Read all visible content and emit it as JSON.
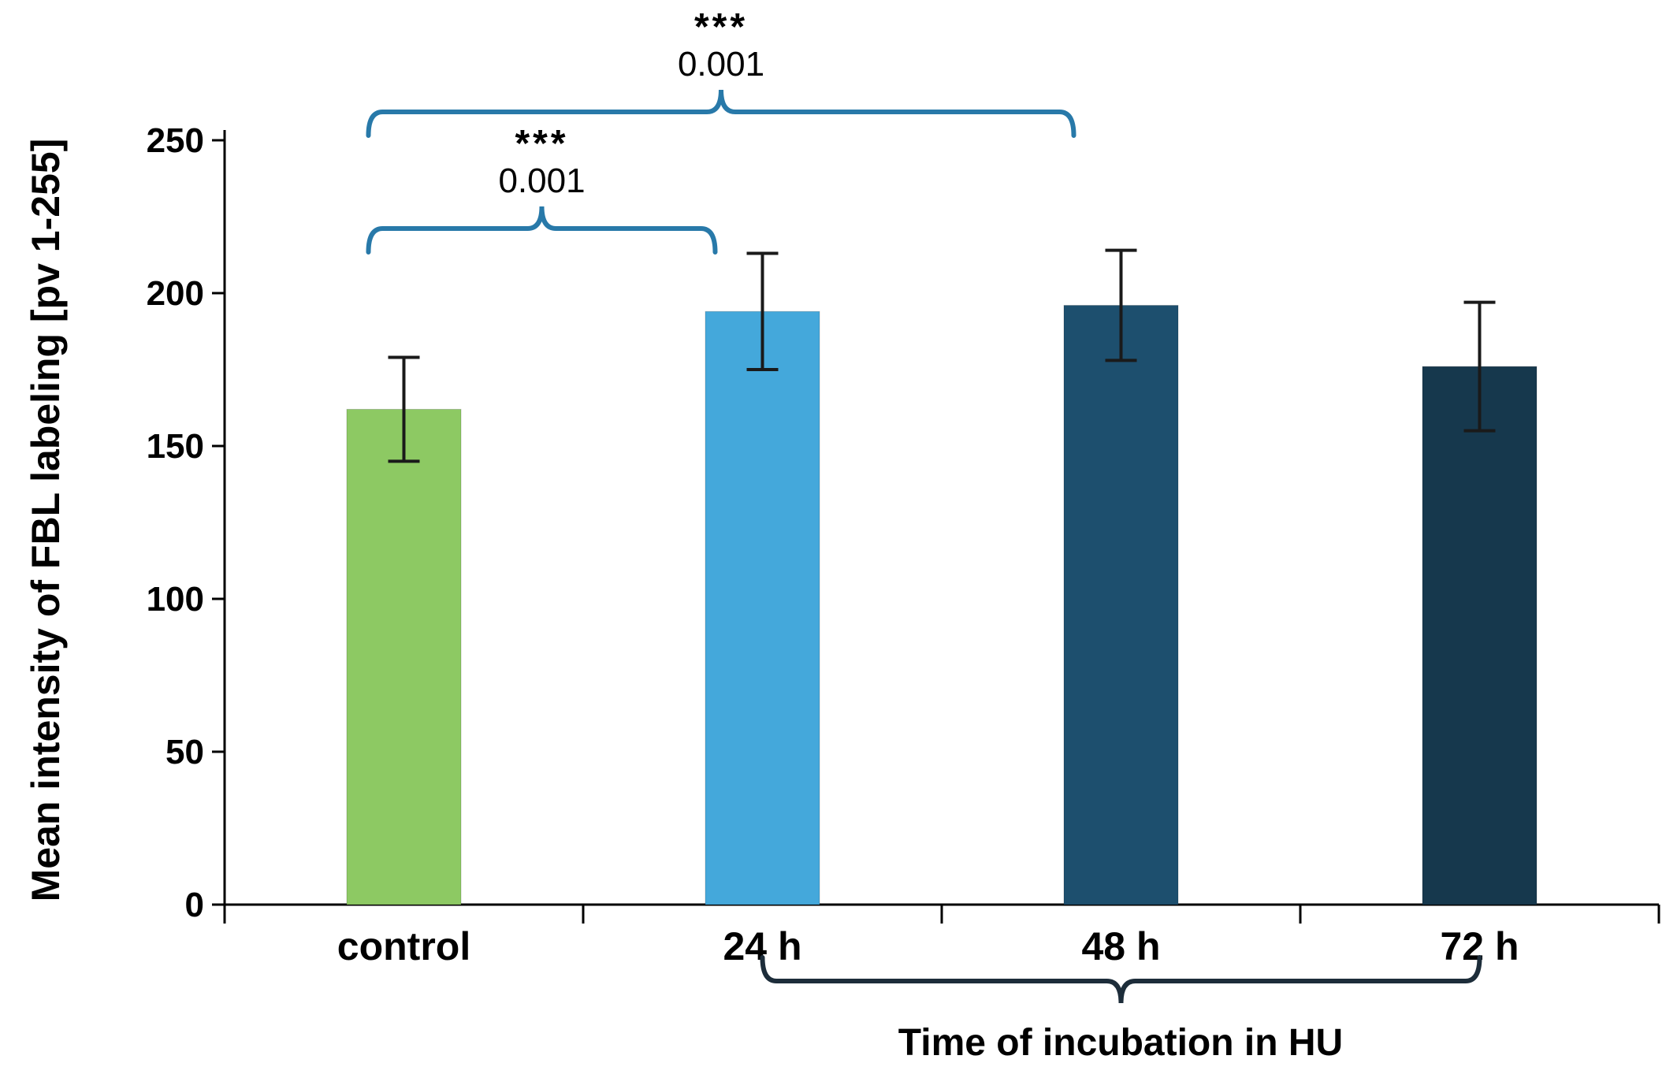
{
  "chart_data": {
    "type": "bar",
    "title": "",
    "ylabel": "Mean intensity of FBL labeling [pv 1-255]",
    "xlabel": "Time of incubation in HU",
    "categories": [
      "control",
      "24 h",
      "48 h",
      "72 h"
    ],
    "values": [
      162,
      194,
      196,
      176
    ],
    "errors": [
      17,
      19,
      18,
      21
    ],
    "ylim": [
      0,
      250
    ],
    "yticks": [
      0,
      50,
      100,
      150,
      200,
      250
    ],
    "grid": "off",
    "legend": "none",
    "bar_colors": [
      "#8DC963",
      "#44A8DB",
      "#1D4F6E",
      "#16384D"
    ],
    "error_color": "#1a1a1a",
    "axis_color": "#000000",
    "brace_color": "#2879A9",
    "significance": [
      {
        "from": "control",
        "to": "24 h",
        "stars": "***",
        "p": "0.001"
      },
      {
        "from": "control",
        "to": "48 h",
        "stars": "***",
        "p": "0.001"
      }
    ],
    "xgroup": {
      "from": "24 h",
      "to": "72 h",
      "label": "Time of incubation in HU",
      "color": "#1d2d3a"
    }
  }
}
